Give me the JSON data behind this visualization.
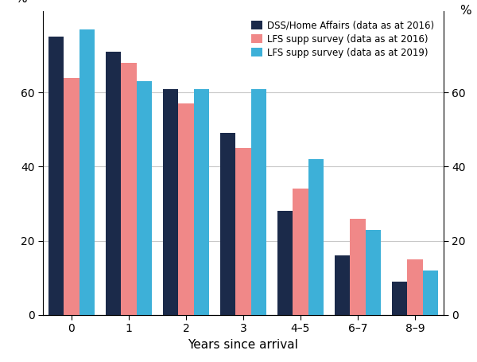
{
  "categories": [
    "0",
    "1",
    "2",
    "3",
    "4–5",
    "6–7",
    "8–9"
  ],
  "dss": [
    75,
    71,
    61,
    49,
    28,
    16,
    9
  ],
  "lfs2016": [
    64,
    68,
    57,
    45,
    34,
    26,
    15
  ],
  "lfs2019": [
    77,
    63,
    61,
    61,
    42,
    23,
    12
  ],
  "color_dss": "#1b2a4a",
  "color_lfs2016": "#f08888",
  "color_lfs2019": "#3db0d8",
  "legend_labels": [
    "DSS/Home Affairs (data as at 2016)",
    "LFS supp survey (data as at 2016)",
    "LFS supp survey (data as at 2019)"
  ],
  "xlabel": "Years since arrival",
  "ylabel_left": "%",
  "ylabel_right": "%",
  "ylim": [
    0,
    82
  ],
  "yticks": [
    0,
    20,
    40,
    60
  ],
  "bar_width": 0.27,
  "background_color": "#ffffff",
  "grid_color": "#c8c8c8"
}
